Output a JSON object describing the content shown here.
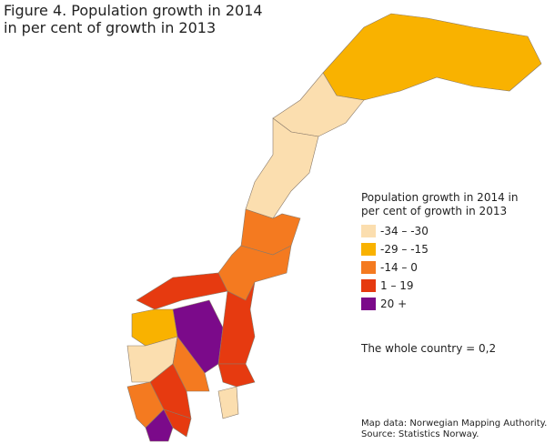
{
  "title": "Figure 4. Population growth in 2014 in per cent of growth in 2013",
  "legend": {
    "title": "Population growth in 2014 in per cent of growth in 2013",
    "items": [
      {
        "label": "-34 – -30",
        "color": "#fbdeaf"
      },
      {
        "label": "-29 – -15",
        "color": "#f9b200"
      },
      {
        "label": "-14 – 0",
        "color": "#f47a20"
      },
      {
        "label": "1 – 19",
        "color": "#e63a10"
      },
      {
        "label": "20 +",
        "color": "#7b0a8a"
      }
    ]
  },
  "note": "The whole country = 0,2",
  "credits": [
    "Map data: Norwegian Mapping Authority.",
    "Source: Statistics Norway."
  ]
}
